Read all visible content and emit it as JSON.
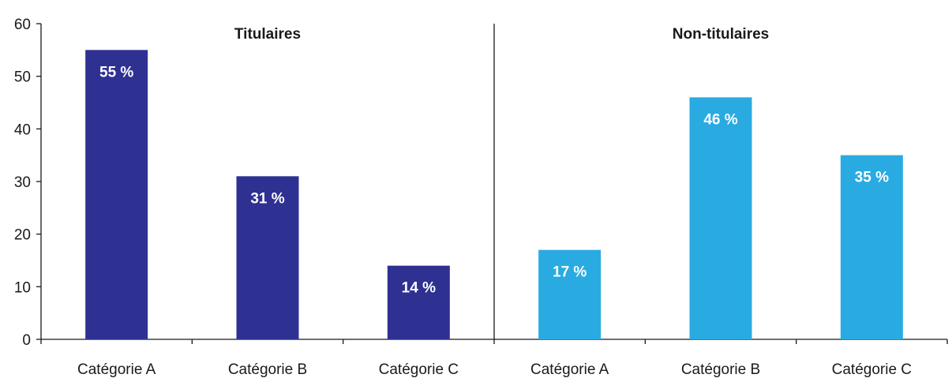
{
  "chart_data": {
    "type": "bar",
    "ylim": [
      0,
      60
    ],
    "yticks": [
      "0",
      "10",
      "20",
      "30",
      "40",
      "50",
      "60"
    ],
    "grid": false,
    "groups": [
      {
        "title": "Titulaires",
        "color": "#2e3192",
        "categories": [
          "Catégorie A",
          "Catégorie B",
          "Catégorie C"
        ],
        "values": [
          55,
          31,
          14
        ],
        "labels": [
          "55 %",
          "31 %",
          "14 %"
        ]
      },
      {
        "title": "Non-titulaires",
        "color": "#29abe2",
        "categories": [
          "Catégorie A",
          "Catégorie B",
          "Catégorie C"
        ],
        "values": [
          17,
          46,
          35
        ],
        "labels": [
          "17 %",
          "46 %",
          "35 %"
        ]
      }
    ]
  }
}
